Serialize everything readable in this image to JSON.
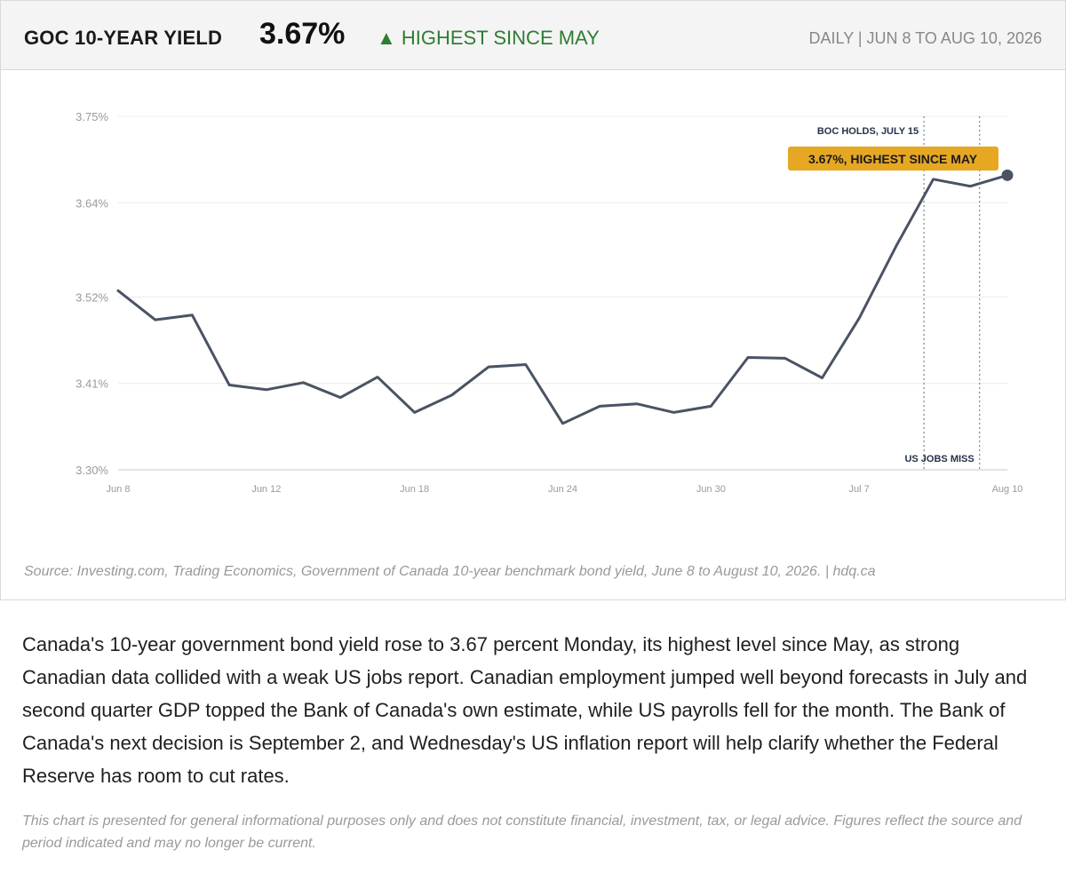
{
  "header": {
    "title": "GOC 10-YEAR YIELD",
    "value": "3.67%",
    "change": "▲ HIGHEST SINCE MAY",
    "period": "DAILY  |  JUN 8 TO AUG 10, 2026"
  },
  "chart_data": {
    "type": "line",
    "ylim": [
      3.3,
      3.75
    ],
    "ytick_labels": [
      "3.75%",
      "3.64%",
      "3.52%",
      "3.41%",
      "3.30%"
    ],
    "ytick_values": [
      3.75,
      3.64,
      3.52,
      3.41,
      3.3
    ],
    "x_ticks": [
      {
        "label": "Jun 8",
        "index": 0
      },
      {
        "label": "Jun 12",
        "index": 4
      },
      {
        "label": "Jun 18",
        "index": 8
      },
      {
        "label": "Jun 24",
        "index": 12
      },
      {
        "label": "Jun 30",
        "index": 16
      },
      {
        "label": "Jul 7",
        "index": 20
      },
      {
        "label": "Aug 10",
        "index": 24
      }
    ],
    "series": [
      {
        "values": [
          3.528,
          3.491,
          3.497,
          3.408,
          3.402,
          3.411,
          3.392,
          3.418,
          3.373,
          3.395,
          3.431,
          3.434,
          3.359,
          3.381,
          3.384,
          3.373,
          3.381,
          3.443,
          3.442,
          3.417,
          3.493,
          3.585,
          3.67,
          3.661,
          3.675
        ],
        "color": "#4a5363"
      }
    ],
    "grid": true,
    "annotations": {
      "event1": {
        "label": "BOC HOLDS, JULY 15",
        "index": 21.75
      },
      "event2": {
        "label": "US JOBS MISS",
        "index": 23.25
      },
      "callout": {
        "label": "3.67%, HIGHEST SINCE MAY",
        "color": "#e6a723"
      }
    }
  },
  "source": "Source: Investing.com, Trading Economics, Government of Canada 10-year benchmark bond yield, June 8 to August 10, 2026.  |  hdq.ca",
  "body": "Canada's 10-year government bond yield rose to 3.67 percent Monday, its highest level since May, as strong Canadian data collided with a weak US jobs report. Canadian employment jumped well beyond forecasts in July and second quarter GDP topped the Bank of Canada's own estimate, while US payrolls fell for the month. The Bank of Canada's next decision is September 2, and Wednesday's US inflation report will help clarify whether the Federal Reserve has room to cut rates.",
  "disclaimer": "This chart is presented for general informational purposes only and does not constitute financial, investment, tax, or legal advice. Figures reflect the source and period indicated and may no longer be current."
}
